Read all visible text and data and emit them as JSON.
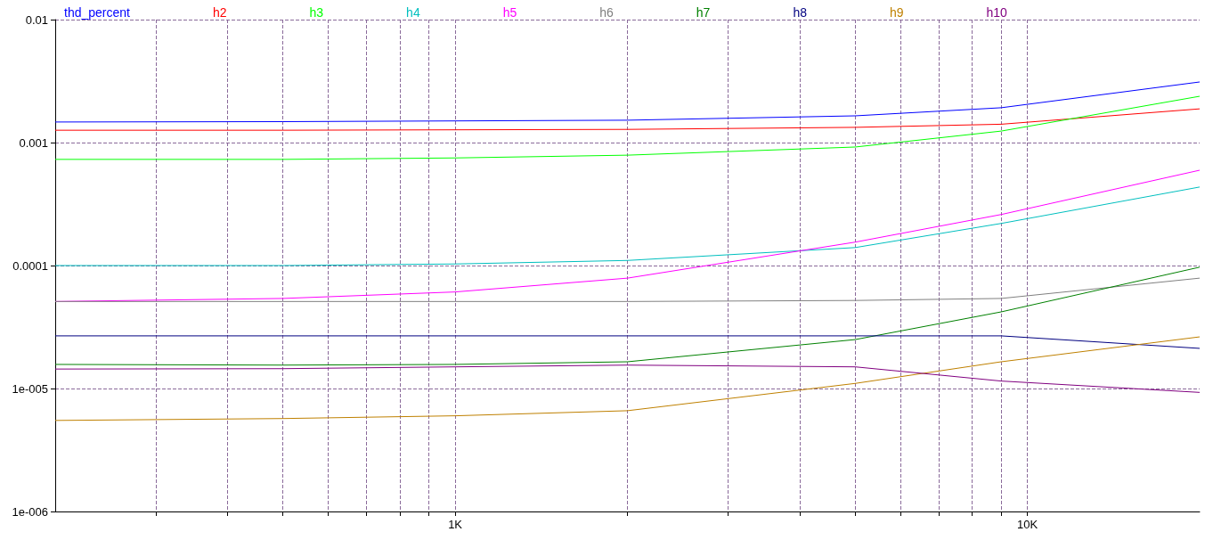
{
  "chart_data": {
    "type": "line",
    "x": [
      200,
      500,
      1000,
      2000,
      5000,
      9000,
      20000
    ],
    "series": [
      {
        "name": "thd_percent",
        "color": "#0000ff",
        "values": [
          0.00147,
          0.00148,
          0.0015,
          0.00152,
          0.00165,
          0.00192,
          0.00311
        ]
      },
      {
        "name": "h2",
        "color": "#ff0000",
        "values": [
          0.00126,
          0.00126,
          0.00127,
          0.00128,
          0.00133,
          0.00141,
          0.00188
        ]
      },
      {
        "name": "h3",
        "color": "#00ff00",
        "values": [
          0.00073,
          0.00073,
          0.00075,
          0.00079,
          0.00092,
          0.00124,
          0.00238
        ]
      },
      {
        "name": "h4",
        "color": "#00bfbf",
        "values": [
          0.0001,
          0.0001,
          0.000103,
          0.00011,
          0.00014,
          0.00022,
          0.000435
        ]
      },
      {
        "name": "h5",
        "color": "#ff00ff",
        "values": [
          5.1e-05,
          5.4e-05,
          6.1e-05,
          7.9e-05,
          0.000155,
          0.00026,
          0.000596
        ]
      },
      {
        "name": "h6",
        "color": "#808080",
        "values": [
          5.1e-05,
          5.1e-05,
          5.1e-05,
          5.1e-05,
          5.2e-05,
          5.4e-05,
          7.9e-05
        ]
      },
      {
        "name": "h7",
        "color": "#008000",
        "values": [
          1.57e-05,
          1.55e-05,
          1.57e-05,
          1.65e-05,
          2.5e-05,
          4.2e-05,
          9.7e-05
        ]
      },
      {
        "name": "h8",
        "color": "#000080",
        "values": [
          2.68e-05,
          2.68e-05,
          2.68e-05,
          2.68e-05,
          2.68e-05,
          2.68e-05,
          2.12e-05
        ]
      },
      {
        "name": "h9",
        "color": "#bf8000",
        "values": [
          5.5e-06,
          5.7e-06,
          6e-06,
          6.6e-06,
          1.1e-05,
          1.65e-05,
          2.63e-05
        ]
      },
      {
        "name": "h10",
        "color": "#800080",
        "values": [
          1.44e-05,
          1.45e-05,
          1.5e-05,
          1.55e-05,
          1.5e-05,
          1.15e-05,
          9.3e-06
        ]
      }
    ],
    "log": "xy",
    "xlim": [
      200,
      20000
    ],
    "ylim": [
      1e-06,
      0.01
    ],
    "xticks": [
      {
        "value": 300,
        "label": null
      },
      {
        "value": 400,
        "label": null
      },
      {
        "value": 500,
        "label": null
      },
      {
        "value": 600,
        "label": null
      },
      {
        "value": 700,
        "label": null
      },
      {
        "value": 800,
        "label": null
      },
      {
        "value": 900,
        "label": null
      },
      {
        "value": 1000,
        "label": "1K"
      },
      {
        "value": 2000,
        "label": null
      },
      {
        "value": 3000,
        "label": null
      },
      {
        "value": 4000,
        "label": null
      },
      {
        "value": 5000,
        "label": null
      },
      {
        "value": 6000,
        "label": null
      },
      {
        "value": 7000,
        "label": null
      },
      {
        "value": 8000,
        "label": null
      },
      {
        "value": 9000,
        "label": null
      },
      {
        "value": 10000,
        "label": "10K"
      }
    ],
    "yticks": [
      {
        "value": 1e-06,
        "label": "1e-006"
      },
      {
        "value": 1e-05,
        "label": "1e-005"
      },
      {
        "value": 0.0001,
        "label": "0.0001"
      },
      0.001,
      0.01
    ],
    "grid": true,
    "legend": "top",
    "marker": "none",
    "line_style": "solid"
  }
}
